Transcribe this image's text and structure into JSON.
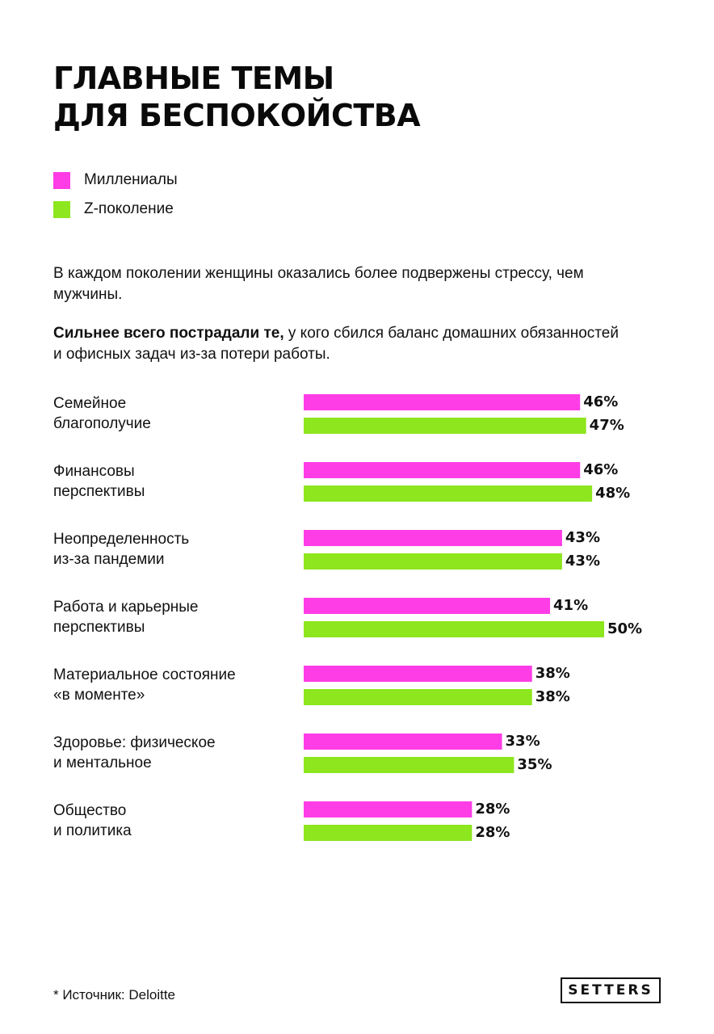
{
  "header": {
    "title_line1": "ГЛАВНЫЕ ТЕМЫ",
    "title_line2": "ДЛЯ БЕСПОКОЙСТВА"
  },
  "intro": {
    "paragraph1": "В каждом поколении женщины оказались более подвержены стрессу, чем мужчины.",
    "paragraph2_bold": "Сильнее всего пострадали те,",
    "paragraph2_rest": " у кого сбился баланс домашних обязанностей и офисных задач из-за потери работы."
  },
  "footer": {
    "source": "* Источник: Deloitte",
    "logo_text": "SETTERS"
  },
  "chart_data": {
    "type": "bar",
    "orientation": "horizontal",
    "grid": false,
    "legend_position": "top-left",
    "value_suffix": "%",
    "xlim": [
      0,
      50
    ],
    "categories": [
      [
        "Семейное",
        "благополучие"
      ],
      [
        "Финансовы",
        "перспективы"
      ],
      [
        "Неопределенность",
        "из-за пандемии"
      ],
      [
        "Работа и карьерные",
        "перспективы"
      ],
      [
        "Материальное состояние",
        "«в моменте»"
      ],
      [
        "Здоровье: физическое",
        "и ментальное"
      ],
      [
        "Общество",
        "и политика"
      ]
    ],
    "series": [
      {
        "name": "Миллениалы",
        "color": "#ff3de6",
        "values": [
          46,
          46,
          43,
          41,
          38,
          33,
          28
        ]
      },
      {
        "name": "Z-поколение",
        "color": "#8de61e",
        "values": [
          47,
          48,
          43,
          50,
          38,
          35,
          28
        ]
      }
    ]
  }
}
